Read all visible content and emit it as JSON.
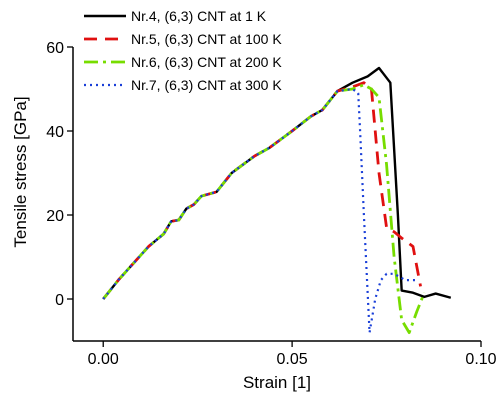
{
  "chart_data": {
    "type": "line",
    "title": "",
    "xlabel": "Strain [1]",
    "ylabel": "Tensile stress [GPa]",
    "xlim": [
      -0.008,
      0.1
    ],
    "ylim": [
      -10,
      60
    ],
    "x_ticks": [
      0.0,
      0.05,
      0.1
    ],
    "x_tick_labels": [
      "0.00",
      "0.05",
      "0.10"
    ],
    "y_ticks": [
      0,
      20,
      40,
      60
    ],
    "y_tick_labels": [
      "0",
      "20",
      "40",
      "60"
    ],
    "grid": false,
    "legend_position": "top-left",
    "series": [
      {
        "name": "Nr.4, (6,3) CNT at 1 K",
        "color": "#000000",
        "dash": "solid",
        "points": [
          [
            0.0,
            0.0
          ],
          [
            0.004,
            4.5
          ],
          [
            0.008,
            8.5
          ],
          [
            0.012,
            12.5
          ],
          [
            0.016,
            15.5
          ],
          [
            0.018,
            18.5
          ],
          [
            0.02,
            18.8
          ],
          [
            0.022,
            21.5
          ],
          [
            0.024,
            22.5
          ],
          [
            0.026,
            24.5
          ],
          [
            0.03,
            25.5
          ],
          [
            0.034,
            30.0
          ],
          [
            0.04,
            34.0
          ],
          [
            0.044,
            36.0
          ],
          [
            0.05,
            40.0
          ],
          [
            0.055,
            43.5
          ],
          [
            0.058,
            45.0
          ],
          [
            0.062,
            49.5
          ],
          [
            0.066,
            51.5
          ],
          [
            0.07,
            53.0
          ],
          [
            0.073,
            55.0
          ],
          [
            0.076,
            51.5
          ],
          [
            0.078,
            20.0
          ],
          [
            0.079,
            2.0
          ],
          [
            0.082,
            1.5
          ],
          [
            0.085,
            0.5
          ],
          [
            0.088,
            1.3
          ],
          [
            0.092,
            0.3
          ]
        ]
      },
      {
        "name": "Nr.5, (6,3) CNT at 100 K",
        "color": "#e01010",
        "dash": "dashed",
        "points": [
          [
            0.0,
            0.0
          ],
          [
            0.004,
            4.5
          ],
          [
            0.008,
            8.5
          ],
          [
            0.012,
            12.5
          ],
          [
            0.016,
            15.5
          ],
          [
            0.018,
            18.5
          ],
          [
            0.02,
            18.8
          ],
          [
            0.022,
            21.5
          ],
          [
            0.024,
            22.5
          ],
          [
            0.026,
            24.5
          ],
          [
            0.03,
            25.5
          ],
          [
            0.034,
            30.0
          ],
          [
            0.04,
            34.0
          ],
          [
            0.044,
            36.0
          ],
          [
            0.05,
            40.0
          ],
          [
            0.055,
            43.5
          ],
          [
            0.058,
            45.0
          ],
          [
            0.062,
            49.5
          ],
          [
            0.066,
            50.5
          ],
          [
            0.069,
            51.5
          ],
          [
            0.071,
            50.0
          ],
          [
            0.073,
            30.0
          ],
          [
            0.075,
            17.0
          ],
          [
            0.077,
            16.0
          ],
          [
            0.079,
            14.5
          ],
          [
            0.082,
            12.5
          ],
          [
            0.084,
            3.0
          ]
        ]
      },
      {
        "name": "Nr.6, (6,3) CNT at 200 K",
        "color": "#77dd00",
        "dash": "dashdot",
        "points": [
          [
            0.0,
            0.0
          ],
          [
            0.004,
            4.5
          ],
          [
            0.008,
            8.5
          ],
          [
            0.012,
            12.5
          ],
          [
            0.016,
            15.5
          ],
          [
            0.018,
            18.5
          ],
          [
            0.02,
            18.8
          ],
          [
            0.022,
            21.5
          ],
          [
            0.024,
            22.5
          ],
          [
            0.026,
            24.5
          ],
          [
            0.03,
            25.5
          ],
          [
            0.034,
            30.0
          ],
          [
            0.04,
            34.0
          ],
          [
            0.044,
            36.0
          ],
          [
            0.05,
            40.0
          ],
          [
            0.055,
            43.5
          ],
          [
            0.058,
            45.0
          ],
          [
            0.062,
            49.5
          ],
          [
            0.066,
            50.0
          ],
          [
            0.069,
            51.0
          ],
          [
            0.071,
            50.0
          ],
          [
            0.073,
            48.0
          ],
          [
            0.075,
            32.0
          ],
          [
            0.077,
            10.0
          ],
          [
            0.079,
            -5.0
          ],
          [
            0.081,
            -8.0
          ],
          [
            0.083,
            -3.0
          ],
          [
            0.085,
            1.5
          ]
        ]
      },
      {
        "name": "Nr.7, (6,3) CNT at 300 K",
        "color": "#1a3fd8",
        "dash": "dotted",
        "points": [
          [
            0.0,
            0.0
          ],
          [
            0.004,
            4.5
          ],
          [
            0.008,
            8.5
          ],
          [
            0.012,
            12.5
          ],
          [
            0.016,
            15.5
          ],
          [
            0.018,
            18.5
          ],
          [
            0.02,
            18.8
          ],
          [
            0.022,
            21.5
          ],
          [
            0.024,
            22.5
          ],
          [
            0.026,
            24.5
          ],
          [
            0.03,
            25.5
          ],
          [
            0.034,
            30.0
          ],
          [
            0.04,
            34.0
          ],
          [
            0.044,
            36.0
          ],
          [
            0.05,
            40.0
          ],
          [
            0.055,
            43.5
          ],
          [
            0.058,
            45.0
          ],
          [
            0.062,
            49.5
          ],
          [
            0.066,
            50.0
          ],
          [
            0.0675,
            49.0
          ],
          [
            0.068,
            40.0
          ],
          [
            0.069,
            20.0
          ],
          [
            0.0705,
            -8.0
          ],
          [
            0.072,
            0.0
          ],
          [
            0.0735,
            4.5
          ],
          [
            0.075,
            6.0
          ],
          [
            0.077,
            6.0
          ],
          [
            0.08,
            4.5
          ],
          [
            0.083,
            4.5
          ]
        ]
      }
    ]
  }
}
